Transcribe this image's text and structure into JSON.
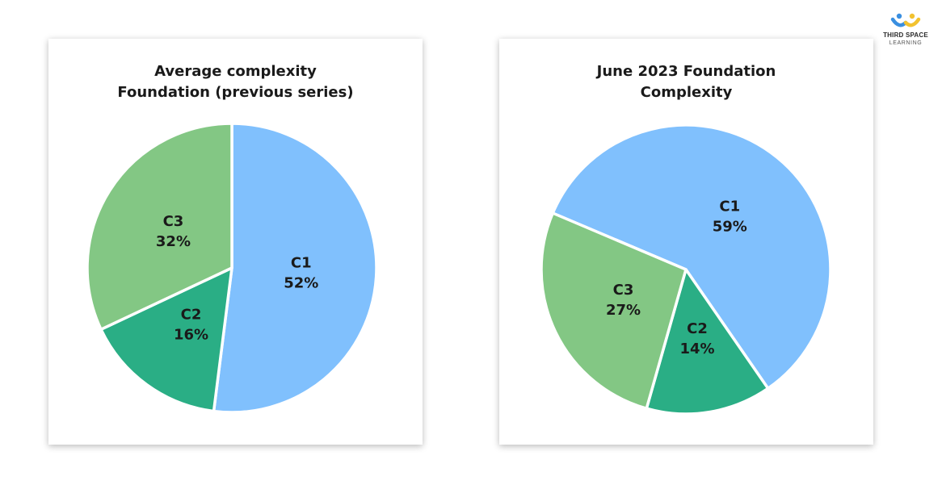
{
  "logo": {
    "line1": "THIRD SPACE",
    "line2": "LEARNING",
    "colors": {
      "blue": "#3a8fe0",
      "yellow": "#f2c230"
    }
  },
  "chart_data": [
    {
      "type": "pie",
      "title_lines": [
        "Average complexity",
        "Foundation (previous series)"
      ],
      "slices": [
        {
          "name": "C1",
          "value": 52,
          "label": "52%",
          "color": "#80c0fd"
        },
        {
          "name": "C2",
          "value": 16,
          "label": "16%",
          "color": "#2aae85"
        },
        {
          "name": "C3",
          "value": 32,
          "label": "32%",
          "color": "#83c784"
        }
      ],
      "start_angle_deg": 0
    },
    {
      "type": "pie",
      "title_lines": [
        "June 2023 Foundation",
        "Complexity"
      ],
      "slices": [
        {
          "name": "C1",
          "value": 59,
          "label": "59%",
          "color": "#80c0fd"
        },
        {
          "name": "C2",
          "value": 14,
          "label": "14%",
          "color": "#2aae85"
        },
        {
          "name": "C3",
          "value": 27,
          "label": "27%",
          "color": "#83c784"
        }
      ],
      "start_angle_deg": -67
    }
  ]
}
